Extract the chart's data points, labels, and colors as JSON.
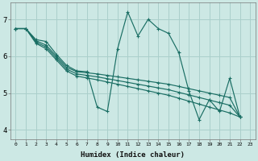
{
  "xlabel": "Humidex (Indice chaleur)",
  "xlim": [
    -0.5,
    23.5
  ],
  "ylim": [
    3.75,
    7.45
  ],
  "yticks": [
    4,
    5,
    6,
    7
  ],
  "xticks": [
    0,
    1,
    2,
    3,
    4,
    5,
    6,
    7,
    8,
    9,
    10,
    11,
    12,
    13,
    14,
    15,
    16,
    17,
    18,
    19,
    20,
    21,
    22,
    23
  ],
  "bg_color": "#cce8e4",
  "grid_color": "#aacfcb",
  "line_color": "#1a6e64",
  "series": [
    [
      6.75,
      6.75,
      6.45,
      6.4,
      6.05,
      5.75,
      5.6,
      5.58,
      4.62,
      4.5,
      6.2,
      7.2,
      6.55,
      7.0,
      6.75,
      6.62,
      6.1,
      5.05,
      4.28,
      4.82,
      4.5,
      5.4,
      4.35
    ],
    [
      6.75,
      6.75,
      6.42,
      6.3,
      6.0,
      5.7,
      5.58,
      5.55,
      5.52,
      5.48,
      5.44,
      5.4,
      5.36,
      5.32,
      5.28,
      5.24,
      5.18,
      5.12,
      5.06,
      5.0,
      4.94,
      4.88,
      4.35
    ],
    [
      6.75,
      6.75,
      6.38,
      6.25,
      5.95,
      5.65,
      5.52,
      5.48,
      5.44,
      5.39,
      5.34,
      5.29,
      5.24,
      5.19,
      5.14,
      5.09,
      5.02,
      4.95,
      4.88,
      4.81,
      4.74,
      4.67,
      4.35
    ],
    [
      6.75,
      6.75,
      6.35,
      6.2,
      5.9,
      5.6,
      5.46,
      5.41,
      5.36,
      5.3,
      5.24,
      5.18,
      5.12,
      5.06,
      5.0,
      4.94,
      4.86,
      4.78,
      4.7,
      4.62,
      4.54,
      4.46,
      4.35
    ]
  ]
}
